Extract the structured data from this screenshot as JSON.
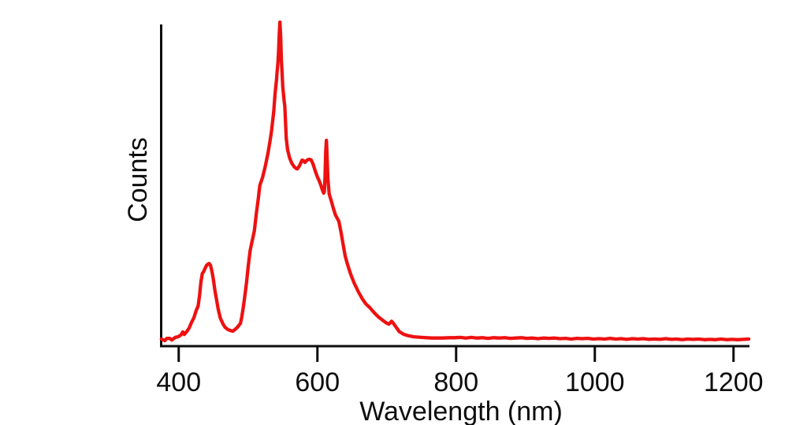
{
  "figure": {
    "background": "#ffffff"
  },
  "chart_data": {
    "type": "line",
    "title": "",
    "xlabel": "Wavelength (nm)",
    "ylabel": "Counts",
    "xlim": [
      373,
      1223
    ],
    "ylim_relative": [
      0,
      1.02
    ],
    "x_ticks": [
      400,
      600,
      800,
      1000,
      1200
    ],
    "x_tick_labels": [
      "400",
      "600",
      "800",
      "1000",
      "1200"
    ],
    "y_ticks": [],
    "grid": false,
    "legend": null,
    "line_color": "#ee1111",
    "axis_color": "#0d0d0d",
    "notes": "Emission spectrum: small peak ~443 nm, main sharp peak ~546 nm, shoulder plateau ~578-590 nm, narrow spike ~613 nm, weak bump ~707 nm, flat noisy baseline to 1222 nm. Intensity is relative (no y-axis tick values shown).",
    "series": [
      {
        "points": [
          [
            375,
            0.022
          ],
          [
            380,
            0.017
          ],
          [
            383,
            0.024
          ],
          [
            387,
            0.024
          ],
          [
            390,
            0.019
          ],
          [
            395,
            0.027
          ],
          [
            399,
            0.029
          ],
          [
            403,
            0.034
          ],
          [
            406,
            0.044
          ],
          [
            408,
            0.036
          ],
          [
            412,
            0.046
          ],
          [
            415,
            0.056
          ],
          [
            418,
            0.071
          ],
          [
            422,
            0.088
          ],
          [
            425,
            0.109
          ],
          [
            428,
            0.124
          ],
          [
            430,
            0.156
          ],
          [
            432,
            0.197
          ],
          [
            434,
            0.224
          ],
          [
            436,
            0.23
          ],
          [
            438,
            0.24
          ],
          [
            440,
            0.249
          ],
          [
            442,
            0.253
          ],
          [
            444,
            0.255
          ],
          [
            446,
            0.249
          ],
          [
            448,
            0.23
          ],
          [
            450,
            0.205
          ],
          [
            452,
            0.175
          ],
          [
            454,
            0.15
          ],
          [
            457,
            0.114
          ],
          [
            460,
            0.086
          ],
          [
            464,
            0.068
          ],
          [
            467,
            0.058
          ],
          [
            471,
            0.051
          ],
          [
            474,
            0.049
          ],
          [
            478,
            0.046
          ],
          [
            481,
            0.051
          ],
          [
            484,
            0.057
          ],
          [
            486,
            0.062
          ],
          [
            489,
            0.07
          ],
          [
            491,
            0.09
          ],
          [
            493,
            0.118
          ],
          [
            495,
            0.15
          ],
          [
            498,
            0.2
          ],
          [
            500,
            0.243
          ],
          [
            503,
            0.295
          ],
          [
            506,
            0.325
          ],
          [
            509,
            0.355
          ],
          [
            512,
            0.41
          ],
          [
            515,
            0.46
          ],
          [
            517,
            0.496
          ],
          [
            521,
            0.521
          ],
          [
            525,
            0.557
          ],
          [
            529,
            0.599
          ],
          [
            532,
            0.637
          ],
          [
            534,
            0.667
          ],
          [
            537,
            0.723
          ],
          [
            539,
            0.781
          ],
          [
            541,
            0.82
          ],
          [
            542,
            0.849
          ],
          [
            543,
            0.872
          ],
          [
            544,
            0.91
          ],
          [
            545,
            0.966
          ],
          [
            546,
            1.0
          ],
          [
            547,
            0.959
          ],
          [
            548,
            0.886
          ],
          [
            549,
            0.844
          ],
          [
            550,
            0.8
          ],
          [
            552,
            0.758
          ],
          [
            553,
            0.74
          ],
          [
            555,
            0.642
          ],
          [
            557,
            0.606
          ],
          [
            560,
            0.58
          ],
          [
            563,
            0.565
          ],
          [
            566,
            0.555
          ],
          [
            569,
            0.549
          ],
          [
            571,
            0.547
          ],
          [
            574,
            0.556
          ],
          [
            577,
            0.57
          ],
          [
            578,
            0.574
          ],
          [
            580,
            0.572
          ],
          [
            582,
            0.567
          ],
          [
            585,
            0.574
          ],
          [
            588,
            0.577
          ],
          [
            591,
            0.575
          ],
          [
            594,
            0.56
          ],
          [
            597,
            0.54
          ],
          [
            600,
            0.522
          ],
          [
            603,
            0.508
          ],
          [
            605,
            0.496
          ],
          [
            607,
            0.483
          ],
          [
            609,
            0.472
          ],
          [
            610,
            0.478
          ],
          [
            611,
            0.52
          ],
          [
            612,
            0.6
          ],
          [
            613,
            0.635
          ],
          [
            614,
            0.58
          ],
          [
            615,
            0.52
          ],
          [
            616,
            0.495
          ],
          [
            617,
            0.47
          ],
          [
            618,
            0.462
          ],
          [
            620,
            0.448
          ],
          [
            623,
            0.425
          ],
          [
            626,
            0.405
          ],
          [
            631,
            0.385
          ],
          [
            634,
            0.352
          ],
          [
            637,
            0.315
          ],
          [
            640,
            0.278
          ],
          [
            643,
            0.255
          ],
          [
            648,
            0.222
          ],
          [
            653,
            0.195
          ],
          [
            659,
            0.168
          ],
          [
            665,
            0.145
          ],
          [
            670,
            0.13
          ],
          [
            676,
            0.118
          ],
          [
            682,
            0.103
          ],
          [
            688,
            0.09
          ],
          [
            694,
            0.08
          ],
          [
            699,
            0.072
          ],
          [
            703,
            0.068
          ],
          [
            705,
            0.072
          ],
          [
            707,
            0.077
          ],
          [
            710,
            0.069
          ],
          [
            714,
            0.057
          ],
          [
            718,
            0.045
          ],
          [
            724,
            0.037
          ],
          [
            731,
            0.032
          ],
          [
            739,
            0.029
          ],
          [
            750,
            0.027
          ],
          [
            765,
            0.025
          ],
          [
            780,
            0.025
          ],
          [
            790,
            0.026
          ],
          [
            798,
            0.026
          ],
          [
            806,
            0.027
          ],
          [
            814,
            0.025
          ],
          [
            822,
            0.027
          ],
          [
            830,
            0.025
          ],
          [
            838,
            0.026
          ],
          [
            846,
            0.024
          ],
          [
            854,
            0.026
          ],
          [
            862,
            0.025
          ],
          [
            870,
            0.026
          ],
          [
            878,
            0.024
          ],
          [
            886,
            0.025
          ],
          [
            894,
            0.026
          ],
          [
            902,
            0.024
          ],
          [
            910,
            0.025
          ],
          [
            918,
            0.023
          ],
          [
            926,
            0.025
          ],
          [
            934,
            0.024
          ],
          [
            942,
            0.025
          ],
          [
            950,
            0.023
          ],
          [
            958,
            0.024
          ],
          [
            966,
            0.022
          ],
          [
            974,
            0.024
          ],
          [
            982,
            0.023
          ],
          [
            990,
            0.024
          ],
          [
            998,
            0.022
          ],
          [
            1006,
            0.023
          ],
          [
            1014,
            0.022
          ],
          [
            1022,
            0.024
          ],
          [
            1030,
            0.022
          ],
          [
            1038,
            0.023
          ],
          [
            1046,
            0.021
          ],
          [
            1054,
            0.023
          ],
          [
            1062,
            0.022
          ],
          [
            1070,
            0.023
          ],
          [
            1078,
            0.021
          ],
          [
            1086,
            0.022
          ],
          [
            1094,
            0.021
          ],
          [
            1102,
            0.023
          ],
          [
            1110,
            0.021
          ],
          [
            1118,
            0.022
          ],
          [
            1126,
            0.02
          ],
          [
            1134,
            0.022
          ],
          [
            1142,
            0.021
          ],
          [
            1150,
            0.022
          ],
          [
            1158,
            0.02
          ],
          [
            1166,
            0.021
          ],
          [
            1174,
            0.02
          ],
          [
            1182,
            0.022
          ],
          [
            1190,
            0.02
          ],
          [
            1198,
            0.021
          ],
          [
            1206,
            0.02
          ],
          [
            1214,
            0.021
          ],
          [
            1222,
            0.022
          ]
        ]
      }
    ]
  }
}
